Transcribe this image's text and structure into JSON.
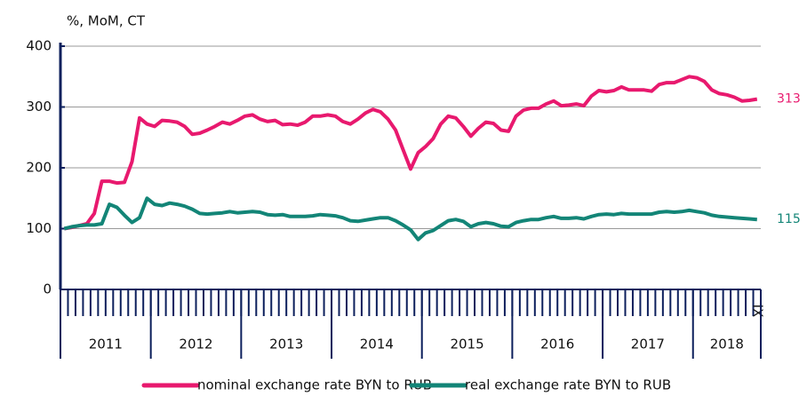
{
  "chart_data": {
    "type": "line",
    "title": "%, MoM, CT",
    "categories": [
      null,
      null,
      null,
      null,
      null,
      null,
      null,
      null,
      null,
      null,
      null,
      null,
      null,
      null,
      null,
      null,
      null,
      null,
      null,
      null,
      null,
      null,
      null,
      null,
      null,
      null,
      null,
      null,
      null,
      null,
      null,
      null,
      null,
      null,
      null,
      null,
      null,
      null,
      null,
      null,
      null,
      null,
      null,
      null,
      null,
      null,
      null,
      null,
      null,
      null,
      null,
      null,
      null,
      null,
      null,
      null,
      null,
      null,
      null,
      null,
      null,
      null,
      null,
      null,
      null,
      null,
      null,
      null,
      null,
      null,
      null,
      null,
      null,
      null,
      null,
      null,
      null,
      null,
      null,
      null,
      null,
      null,
      null,
      null,
      null,
      null,
      null,
      null,
      null,
      null,
      null,
      null,
      "IX"
    ],
    "groups": [
      {
        "label": "2011",
        "count": 12
      },
      {
        "label": "2012",
        "count": 12
      },
      {
        "label": "2013",
        "count": 12
      },
      {
        "label": "2014",
        "count": 12
      },
      {
        "label": "2015",
        "count": 12
      },
      {
        "label": "2016",
        "count": 12
      },
      {
        "label": "2017",
        "count": 12
      },
      {
        "label": "2018",
        "count": 9
      }
    ],
    "series": [
      {
        "name": "nominal exchange rate BYN to RUB",
        "color": "#e8196e",
        "end_label": "313",
        "values": [
          100,
          102,
          105,
          108,
          125,
          178,
          178,
          175,
          176,
          210,
          282,
          272,
          268,
          278,
          277,
          275,
          268,
          255,
          257,
          262,
          268,
          275,
          272,
          278,
          285,
          287,
          280,
          276,
          278,
          271,
          272,
          270,
          275,
          285,
          285,
          287,
          285,
          276,
          272,
          280,
          290,
          296,
          292,
          280,
          262,
          230,
          198,
          225,
          235,
          248,
          272,
          285,
          282,
          268,
          252,
          265,
          275,
          273,
          262,
          260,
          285,
          295,
          298,
          298,
          305,
          310,
          302,
          303,
          305,
          302,
          318,
          327,
          325,
          327,
          333,
          328,
          328,
          328,
          326,
          337,
          340,
          340,
          345,
          350,
          348,
          342,
          328,
          322,
          320,
          316,
          310,
          311,
          313
        ]
      },
      {
        "name": "real exchange rate BYN to RUB",
        "color": "#138577",
        "end_label": "115",
        "values": [
          100,
          103,
          105,
          106,
          106,
          108,
          140,
          135,
          122,
          110,
          118,
          150,
          140,
          138,
          142,
          140,
          137,
          132,
          125,
          124,
          125,
          126,
          128,
          126,
          127,
          128,
          127,
          123,
          122,
          123,
          120,
          120,
          120,
          121,
          123,
          122,
          121,
          118,
          113,
          112,
          114,
          116,
          118,
          118,
          113,
          106,
          98,
          82,
          93,
          97,
          105,
          113,
          115,
          112,
          103,
          108,
          110,
          108,
          104,
          103,
          110,
          113,
          115,
          115,
          118,
          120,
          117,
          117,
          118,
          116,
          120,
          123,
          124,
          123,
          125,
          124,
          124,
          124,
          124,
          127,
          128,
          127,
          128,
          130,
          128,
          126,
          122,
          120,
          119,
          118,
          117,
          116,
          115
        ]
      }
    ],
    "ylim": [
      0,
      400
    ],
    "yticks": [
      0,
      100,
      200,
      300,
      400
    ],
    "grid": true
  }
}
